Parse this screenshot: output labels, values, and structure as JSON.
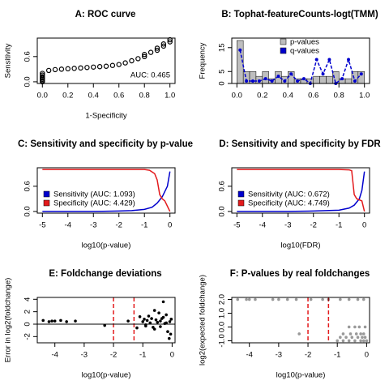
{
  "chart_data": [
    {
      "type": "scatter",
      "title": "A: ROC curve",
      "x_label": "1-Specificity",
      "y_label": "Sensitivity",
      "marker": "open",
      "color": "#000000",
      "x": [
        0,
        0,
        0,
        0,
        0,
        0,
        0,
        0.05,
        0.1,
        0.15,
        0.2,
        0.25,
        0.3,
        0.35,
        0.4,
        0.45,
        0.5,
        0.55,
        0.6,
        0.65,
        0.7,
        0.75,
        0.8,
        0.8,
        0.85,
        0.9,
        0.9,
        0.95,
        0.95,
        1,
        1
      ],
      "values": [
        0,
        0.03,
        0.06,
        0.09,
        0.12,
        0.16,
        0.2,
        0.27,
        0.29,
        0.3,
        0.31,
        0.32,
        0.33,
        0.34,
        0.35,
        0.36,
        0.37,
        0.39,
        0.41,
        0.45,
        0.5,
        0.55,
        0.6,
        0.65,
        0.7,
        0.75,
        0.8,
        0.85,
        0.9,
        0.95,
        1
      ],
      "xlim": [
        -0.04,
        1.04
      ],
      "ylim": [
        -0.04,
        1.04
      ],
      "xticks": [
        {
          "value": 0,
          "label": "0.0"
        },
        0.2,
        0.4,
        0.6,
        0.8,
        {
          "value": 1,
          "label": "1.0"
        }
      ],
      "yticks": [
        {
          "value": 0,
          "label": "0.0"
        },
        0.6
      ],
      "annotation": "AUC: 0.465"
    },
    {
      "type": "histogram",
      "title": "B: Tophat-featureCounts-logt(TMM)",
      "y_label": "Frequency",
      "name": "p-values",
      "color": "#bebebe",
      "bins": [
        0,
        0.05,
        0.1,
        0.15,
        0.2,
        0.25,
        0.3,
        0.35,
        0.4,
        0.45,
        0.5,
        0.55,
        0.6,
        0.65,
        0.7,
        0.75,
        0.8,
        0.85,
        0.9,
        0.95,
        1
      ],
      "counts": [
        18,
        5,
        5,
        3,
        5,
        2,
        5,
        3,
        5,
        2,
        2,
        2,
        3,
        3,
        3,
        5,
        2,
        2,
        5,
        5
      ],
      "series": [
        {
          "name": "q-values",
          "color": "#0000cd",
          "x": [
            0.025,
            0.075,
            0.125,
            0.175,
            0.225,
            0.275,
            0.325,
            0.375,
            0.425,
            0.475,
            0.525,
            0.575,
            0.625,
            0.675,
            0.725,
            0.775,
            0.825,
            0.875,
            0.925,
            0.975
          ],
          "values": [
            14,
            1,
            1,
            1,
            2,
            1,
            3,
            1,
            4,
            1,
            2,
            0,
            10,
            4,
            10,
            0,
            2,
            10,
            1,
            4
          ]
        }
      ],
      "legend": "top-right",
      "xlim": [
        -0.04,
        1.04
      ],
      "ylim": [
        0,
        19
      ],
      "xticks": [
        {
          "value": 0,
          "label": "0.0"
        },
        0.2,
        0.4,
        0.6,
        0.8,
        {
          "value": 1,
          "label": "1.0"
        }
      ],
      "yticks": [
        0,
        5,
        15
      ]
    },
    {
      "type": "line",
      "title": "C: Sensitivity and specificity by p-value",
      "x_label": "log10(p-value)",
      "series": [
        {
          "name": "Sensitivity (AUC: 1.093)",
          "color": "#0000cd",
          "x": [
            -5,
            -4,
            -3,
            -2,
            -1.5,
            -1,
            -0.7,
            -0.5,
            -0.3,
            -0.1,
            0
          ],
          "values": [
            0,
            0,
            0,
            0.01,
            0.02,
            0.05,
            0.1,
            0.2,
            0.35,
            0.6,
            0.95
          ]
        },
        {
          "name": "Specificity (AUC: 4.429)",
          "color": "#e31a1c",
          "x": [
            -5,
            -2,
            -1,
            -0.8,
            -0.6,
            -0.5,
            -0.4,
            -0.3,
            -0.2,
            0
          ],
          "values": [
            1,
            1,
            1,
            0.98,
            0.9,
            0.75,
            0.4,
            0.3,
            0.25,
            0
          ]
        }
      ],
      "legend": "bottom-left",
      "xlim": [
        -5.2,
        0.2
      ],
      "ylim": [
        -0.04,
        1.04
      ],
      "xticks": [
        -5,
        -4,
        -3,
        -2,
        -1,
        0
      ],
      "yticks": [
        {
          "value": 0,
          "label": "0.0"
        },
        0.6
      ]
    },
    {
      "type": "line",
      "title": "D: Sensitivity and specificity by FDR",
      "x_label": "log10(FDR)",
      "series": [
        {
          "name": "Sensitivity (AUC: 0.672)",
          "color": "#0000cd",
          "x": [
            -5,
            -4,
            -3,
            -2,
            -1,
            -0.6,
            -0.4,
            -0.2,
            -0.1,
            0
          ],
          "values": [
            0,
            0,
            0,
            0.01,
            0.03,
            0.08,
            0.15,
            0.3,
            0.5,
            0.95
          ]
        },
        {
          "name": "Specificity (AUC: 4.749)",
          "color": "#e31a1c",
          "x": [
            -5,
            -2,
            -1,
            -0.6,
            -0.5,
            -0.4,
            -0.3,
            -0.1,
            0
          ],
          "values": [
            1,
            1,
            1,
            0.99,
            0.97,
            0.4,
            0.3,
            0.25,
            0
          ]
        }
      ],
      "legend": "bottom-left",
      "xlim": [
        -5.2,
        0.2
      ],
      "ylim": [
        -0.04,
        1.04
      ],
      "xticks": [
        -5,
        -4,
        -3,
        -2,
        -1,
        0
      ],
      "yticks": [
        {
          "value": 0,
          "label": "0.0"
        },
        0.6
      ]
    },
    {
      "type": "scatter",
      "title": "E: Foldchange deviations",
      "x_label": "log10(p-value)",
      "y_label": "Error in log2(foldchange)",
      "marker": "solid",
      "color": "#000000",
      "x": [
        -4.4,
        -4.2,
        -4.1,
        -4,
        -3.8,
        -3.6,
        -3.3,
        -2.3,
        -1.5,
        -1.2,
        -1.1,
        -1,
        -0.95,
        -0.9,
        -0.85,
        -0.8,
        -0.75,
        -0.7,
        -0.65,
        -0.6,
        -0.55,
        -0.5,
        -0.45,
        -0.4,
        -0.35,
        -0.3,
        -0.25,
        -0.2,
        -0.15,
        -0.1,
        -0.08,
        -0.05,
        -0.03,
        -0.6,
        -0.4,
        -0.2,
        -0.9,
        -0.3
      ],
      "values": [
        0.6,
        0.4,
        0.5,
        0.5,
        0.6,
        0.4,
        0.5,
        -0.2,
        0.5,
        -0.6,
        1.2,
        0.4,
        0.8,
        -0.3,
        0.6,
        1.3,
        0.2,
        0.9,
        -0.5,
        2.2,
        0.7,
        0.3,
        1.8,
        -0.4,
        0.9,
        3.6,
        0.1,
        1.5,
        -1.2,
        -2.3,
        0.4,
        -1.6,
        0.8,
        -0.8,
        0.5,
        0.2,
        -0.1,
        1.1
      ],
      "vlines": [
        -2,
        -1.3
      ],
      "vline_color": "#e31a1c",
      "hline": 0,
      "xlim": [
        -4.6,
        0.1
      ],
      "ylim": [
        -3,
        4.3
      ],
      "xticks": [
        -4,
        -3,
        -2,
        -1,
        0
      ],
      "yticks": [
        -2,
        0,
        2,
        4
      ]
    },
    {
      "type": "scatter",
      "title": "F: P-values by real foldchanges",
      "x_label": "log10(p-value)",
      "y_label": "log2(expected foldchange)",
      "marker": "solid",
      "color": "rgba(0,0,0,0.4)",
      "x": [
        -4.4,
        -4.1,
        -4,
        -3.8,
        -3.2,
        -3,
        -2.7,
        -2.4,
        -1.9,
        -1.5,
        -1.3,
        -0.9,
        -0.6,
        -0.3,
        -0.1,
        -1,
        -0.8,
        -0.6,
        -0.4,
        -0.2,
        -0.1,
        0,
        -0.9,
        -0.7,
        -0.5,
        -0.3,
        -0.15,
        -0.05,
        -0.8,
        -0.55,
        -0.35,
        -0.2,
        -0.1,
        -0.6,
        -0.4,
        -0.25,
        -0.05,
        -2.3
      ],
      "values": [
        2,
        2,
        2,
        2,
        2,
        2,
        2,
        2,
        2,
        2,
        2,
        2,
        2,
        2,
        2,
        -1,
        -1,
        -1,
        -1,
        -1,
        -1,
        -1,
        -0.75,
        -0.75,
        -0.75,
        -0.75,
        -0.75,
        -0.75,
        -0.5,
        -0.5,
        -0.5,
        -0.5,
        -0.5,
        0,
        0,
        0,
        0,
        -0.5
      ],
      "vlines": [
        -2,
        -1.3
      ],
      "vline_color": "#e31a1c",
      "xlim": [
        -4.6,
        0.1
      ],
      "ylim": [
        -1.15,
        2.15
      ],
      "xticks": [
        -4,
        -3,
        -2,
        -1,
        0
      ],
      "yticks": [
        {
          "value": -1,
          "label": "-1.0"
        },
        {
          "value": 0,
          "label": "0.0"
        },
        {
          "value": 1,
          "label": "1.0"
        },
        {
          "value": 2,
          "label": "2.0"
        }
      ]
    }
  ]
}
